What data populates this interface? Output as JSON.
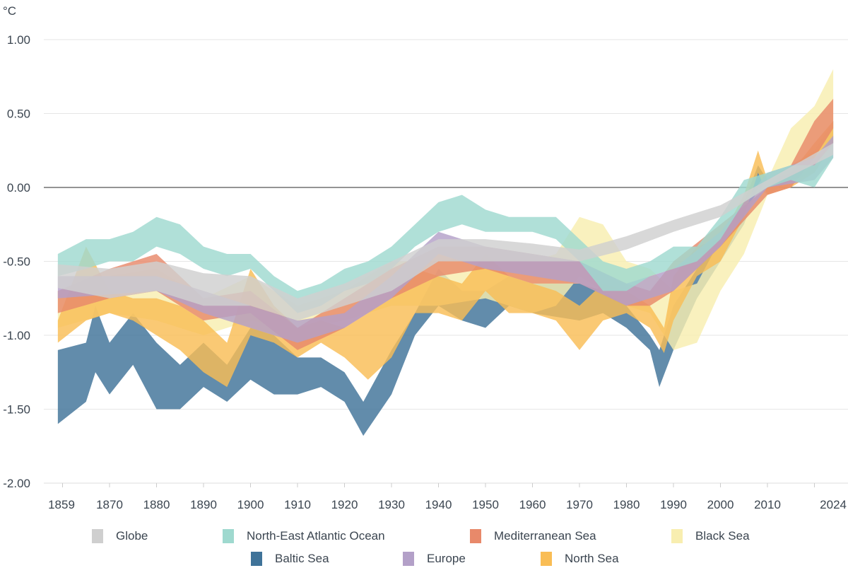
{
  "chart_data": {
    "type": "area",
    "unit": "°C",
    "ylim": [
      -2.0,
      1.0
    ],
    "xlim": [
      1859,
      2024
    ],
    "yticks": [
      "1.00",
      "0.50",
      "0.00",
      "-0.50",
      "-1.00",
      "-1.50",
      "-2.00"
    ],
    "ytick_values": [
      1.0,
      0.5,
      0.0,
      -0.5,
      -1.0,
      -1.5,
      -2.0
    ],
    "xticks": [
      "1859",
      "1870",
      "1880",
      "1890",
      "1900",
      "1910",
      "1920",
      "1930",
      "1940",
      "1950",
      "1960",
      "1970",
      "1980",
      "1990",
      "2000",
      "2010",
      "2024"
    ],
    "xtick_values": [
      1859,
      1870,
      1880,
      1890,
      1900,
      1910,
      1920,
      1930,
      1940,
      1950,
      1960,
      1970,
      1980,
      1990,
      2000,
      2010,
      2024
    ],
    "grid": true,
    "legend_position": "bottom",
    "series": [
      {
        "name": "Baltic Sea",
        "color": "#3f7399",
        "points": [
          [
            1859,
            -1.6,
            -1.1
          ],
          [
            1865,
            -1.45,
            -1.05
          ],
          [
            1867,
            -1.25,
            -0.8
          ],
          [
            1870,
            -1.4,
            -1.05
          ],
          [
            1875,
            -1.2,
            -0.85
          ],
          [
            1880,
            -1.5,
            -1.05
          ],
          [
            1885,
            -1.5,
            -1.2
          ],
          [
            1890,
            -1.35,
            -1.05
          ],
          [
            1895,
            -1.45,
            -1.2
          ],
          [
            1900,
            -1.3,
            -0.95
          ],
          [
            1905,
            -1.4,
            -1.0
          ],
          [
            1910,
            -1.4,
            -1.15
          ],
          [
            1915,
            -1.35,
            -1.15
          ],
          [
            1920,
            -1.45,
            -1.25
          ],
          [
            1924,
            -1.68,
            -1.45
          ],
          [
            1930,
            -1.4,
            -1.1
          ],
          [
            1935,
            -1.0,
            -0.85
          ],
          [
            1940,
            -0.8,
            -0.55
          ],
          [
            1945,
            -0.9,
            -0.7
          ],
          [
            1950,
            -0.95,
            -0.7
          ],
          [
            1955,
            -0.8,
            -0.6
          ],
          [
            1960,
            -0.85,
            -0.65
          ],
          [
            1970,
            -0.9,
            -0.65
          ],
          [
            1975,
            -0.85,
            -0.7
          ],
          [
            1980,
            -0.95,
            -0.8
          ],
          [
            1985,
            -1.1,
            -1.0
          ],
          [
            1987,
            -1.35,
            -1.1
          ],
          [
            1990,
            -1.1,
            -0.8
          ],
          [
            1995,
            -0.75,
            -0.55
          ],
          [
            2000,
            -0.5,
            -0.35
          ],
          [
            2005,
            -0.25,
            -0.1
          ],
          [
            2008,
            0.0,
            0.15
          ],
          [
            2010,
            -0.05,
            0.05
          ],
          [
            2015,
            0.05,
            0.15
          ],
          [
            2020,
            0.1,
            0.25
          ],
          [
            2024,
            0.3,
            0.45
          ]
        ]
      },
      {
        "name": "Black Sea",
        "color": "#f8eeb0",
        "points": [
          [
            1859,
            -0.95,
            -0.7
          ],
          [
            1870,
            -0.85,
            -0.6
          ],
          [
            1880,
            -0.9,
            -0.55
          ],
          [
            1890,
            -1.0,
            -0.75
          ],
          [
            1900,
            -0.9,
            -0.6
          ],
          [
            1910,
            -0.95,
            -0.8
          ],
          [
            1920,
            -0.9,
            -0.7
          ],
          [
            1930,
            -0.8,
            -0.5
          ],
          [
            1940,
            -0.8,
            -0.5
          ],
          [
            1950,
            -0.75,
            -0.45
          ],
          [
            1960,
            -0.85,
            -0.5
          ],
          [
            1965,
            -0.8,
            -0.45
          ],
          [
            1970,
            -0.6,
            -0.2
          ],
          [
            1975,
            -0.7,
            -0.25
          ],
          [
            1980,
            -0.8,
            -0.5
          ],
          [
            1985,
            -0.85,
            -0.55
          ],
          [
            1990,
            -1.1,
            -0.7
          ],
          [
            1995,
            -1.05,
            -0.65
          ],
          [
            2000,
            -0.7,
            -0.35
          ],
          [
            2005,
            -0.45,
            -0.15
          ],
          [
            2010,
            -0.05,
            0.05
          ],
          [
            2015,
            0.05,
            0.4
          ],
          [
            2020,
            0.15,
            0.55
          ],
          [
            2024,
            0.35,
            0.8
          ]
        ]
      },
      {
        "name": "North Sea",
        "color": "#f9bd55",
        "points": [
          [
            1859,
            -1.05,
            -0.9
          ],
          [
            1865,
            -0.9,
            -0.4
          ],
          [
            1870,
            -0.85,
            -0.7
          ],
          [
            1875,
            -0.9,
            -0.75
          ],
          [
            1880,
            -1.0,
            -0.75
          ],
          [
            1885,
            -1.1,
            -0.8
          ],
          [
            1890,
            -1.25,
            -0.9
          ],
          [
            1895,
            -1.35,
            -1.05
          ],
          [
            1900,
            -1.0,
            -0.55
          ],
          [
            1905,
            -1.05,
            -0.8
          ],
          [
            1910,
            -1.15,
            -0.95
          ],
          [
            1915,
            -1.05,
            -0.9
          ],
          [
            1920,
            -1.15,
            -0.95
          ],
          [
            1925,
            -1.3,
            -0.85
          ],
          [
            1930,
            -1.15,
            -0.75
          ],
          [
            1935,
            -0.85,
            -0.55
          ],
          [
            1940,
            -0.85,
            -0.6
          ],
          [
            1945,
            -0.9,
            -0.65
          ],
          [
            1950,
            -0.7,
            -0.45
          ],
          [
            1955,
            -0.85,
            -0.6
          ],
          [
            1960,
            -0.85,
            -0.65
          ],
          [
            1965,
            -0.9,
            -0.7
          ],
          [
            1970,
            -1.1,
            -0.8
          ],
          [
            1975,
            -0.9,
            -0.65
          ],
          [
            1980,
            -0.85,
            -0.7
          ],
          [
            1985,
            -0.95,
            -0.8
          ],
          [
            1988,
            -1.12,
            -0.95
          ],
          [
            1990,
            -0.9,
            -0.6
          ],
          [
            1995,
            -0.6,
            -0.4
          ],
          [
            2000,
            -0.5,
            -0.35
          ],
          [
            2005,
            -0.2,
            -0.05
          ],
          [
            2008,
            0.1,
            0.25
          ],
          [
            2010,
            -0.05,
            0.05
          ],
          [
            2015,
            0.0,
            0.1
          ],
          [
            2020,
            0.1,
            0.3
          ],
          [
            2024,
            0.3,
            0.45
          ]
        ]
      },
      {
        "name": "Mediterranean Sea",
        "color": "#e8896a",
        "points": [
          [
            1859,
            -0.85,
            -0.7
          ],
          [
            1870,
            -0.75,
            -0.55
          ],
          [
            1880,
            -0.7,
            -0.45
          ],
          [
            1890,
            -0.9,
            -0.75
          ],
          [
            1900,
            -0.85,
            -0.7
          ],
          [
            1910,
            -1.1,
            -0.95
          ],
          [
            1920,
            -0.95,
            -0.75
          ],
          [
            1930,
            -0.75,
            -0.55
          ],
          [
            1940,
            -0.6,
            -0.4
          ],
          [
            1950,
            -0.55,
            -0.4
          ],
          [
            1960,
            -0.65,
            -0.45
          ],
          [
            1970,
            -0.65,
            -0.5
          ],
          [
            1980,
            -0.8,
            -0.65
          ],
          [
            1985,
            -0.8,
            -0.7
          ],
          [
            1990,
            -0.7,
            -0.5
          ],
          [
            2000,
            -0.4,
            -0.25
          ],
          [
            2010,
            -0.05,
            0.0
          ],
          [
            2015,
            0.0,
            0.15
          ],
          [
            2020,
            0.2,
            0.45
          ],
          [
            2024,
            0.4,
            0.6
          ]
        ]
      },
      {
        "name": "Europe",
        "color": "#b3a0c8",
        "points": [
          [
            1859,
            -0.75,
            -0.6
          ],
          [
            1880,
            -0.7,
            -0.6
          ],
          [
            1890,
            -0.85,
            -0.7
          ],
          [
            1910,
            -1.05,
            -0.9
          ],
          [
            1920,
            -0.95,
            -0.85
          ],
          [
            1930,
            -0.75,
            -0.6
          ],
          [
            1940,
            -0.45,
            -0.3
          ],
          [
            1950,
            -0.55,
            -0.4
          ],
          [
            1960,
            -0.6,
            -0.45
          ],
          [
            1970,
            -0.65,
            -0.5
          ],
          [
            1980,
            -0.8,
            -0.65
          ],
          [
            1990,
            -0.7,
            -0.55
          ],
          [
            2000,
            -0.4,
            -0.3
          ],
          [
            2010,
            0.0,
            0.1
          ],
          [
            2020,
            0.05,
            0.2
          ],
          [
            2024,
            0.2,
            0.35
          ]
        ]
      },
      {
        "name": "North-East Atlantic Ocean",
        "color": "#9fd9cf",
        "points": [
          [
            1859,
            -0.6,
            -0.45
          ],
          [
            1865,
            -0.55,
            -0.35
          ],
          [
            1870,
            -0.5,
            -0.35
          ],
          [
            1875,
            -0.5,
            -0.3
          ],
          [
            1880,
            -0.4,
            -0.2
          ],
          [
            1885,
            -0.45,
            -0.25
          ],
          [
            1890,
            -0.55,
            -0.4
          ],
          [
            1895,
            -0.6,
            -0.45
          ],
          [
            1900,
            -0.55,
            -0.45
          ],
          [
            1905,
            -0.7,
            -0.6
          ],
          [
            1910,
            -0.85,
            -0.7
          ],
          [
            1915,
            -0.8,
            -0.65
          ],
          [
            1920,
            -0.7,
            -0.55
          ],
          [
            1925,
            -0.65,
            -0.5
          ],
          [
            1930,
            -0.55,
            -0.4
          ],
          [
            1935,
            -0.4,
            -0.25
          ],
          [
            1940,
            -0.3,
            -0.1
          ],
          [
            1945,
            -0.25,
            -0.05
          ],
          [
            1950,
            -0.3,
            -0.15
          ],
          [
            1955,
            -0.3,
            -0.2
          ],
          [
            1960,
            -0.3,
            -0.2
          ],
          [
            1965,
            -0.35,
            -0.2
          ],
          [
            1970,
            -0.5,
            -0.35
          ],
          [
            1975,
            -0.7,
            -0.5
          ],
          [
            1980,
            -0.7,
            -0.55
          ],
          [
            1985,
            -0.6,
            -0.5
          ],
          [
            1990,
            -0.55,
            -0.4
          ],
          [
            1995,
            -0.5,
            -0.4
          ],
          [
            2000,
            -0.35,
            -0.2
          ],
          [
            2005,
            -0.1,
            0.05
          ],
          [
            2010,
            0.0,
            0.1
          ],
          [
            2015,
            0.05,
            0.15
          ],
          [
            2020,
            0.0,
            0.15
          ],
          [
            2024,
            0.2,
            0.3
          ]
        ]
      },
      {
        "name": "Globe",
        "color": "#cfcfcf",
        "points": [
          [
            1859,
            -0.68,
            -0.52
          ],
          [
            1870,
            -0.75,
            -0.55
          ],
          [
            1880,
            -0.7,
            -0.5
          ],
          [
            1890,
            -0.8,
            -0.58
          ],
          [
            1900,
            -0.8,
            -0.6
          ],
          [
            1910,
            -0.9,
            -0.75
          ],
          [
            1920,
            -0.8,
            -0.65
          ],
          [
            1930,
            -0.7,
            -0.5
          ],
          [
            1940,
            -0.5,
            -0.35
          ],
          [
            1950,
            -0.5,
            -0.35
          ],
          [
            1960,
            -0.5,
            -0.38
          ],
          [
            1970,
            -0.5,
            -0.42
          ],
          [
            1980,
            -0.42,
            -0.33
          ],
          [
            1990,
            -0.3,
            -0.22
          ],
          [
            2000,
            -0.2,
            -0.12
          ],
          [
            2010,
            0.0,
            0.05
          ],
          [
            2024,
            0.22,
            0.3
          ]
        ]
      }
    ],
    "legend": {
      "row1": [
        "Globe",
        "North-East Atlantic Ocean",
        "Mediterranean Sea",
        "Black Sea"
      ],
      "row2": [
        "Baltic Sea",
        "Europe",
        "North Sea"
      ]
    }
  }
}
